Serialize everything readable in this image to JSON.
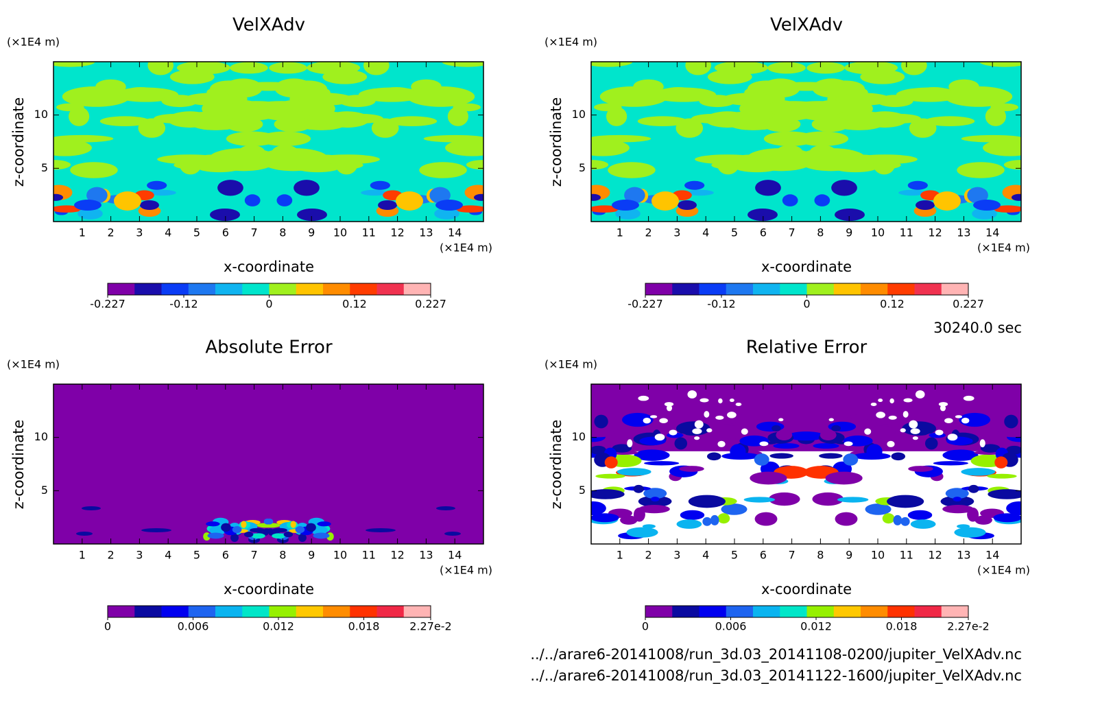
{
  "chart_data": [
    {
      "type": "contour",
      "title": "VelXAdv",
      "xlabel": "x-coordinate",
      "ylabel": "z-coordinate",
      "xunit": "(×1E4 m)",
      "yunit": "(×1E4 m)",
      "xlim": [
        0,
        15
      ],
      "ylim": [
        0,
        15
      ],
      "xticks": [
        1,
        2,
        3,
        4,
        5,
        6,
        7,
        8,
        9,
        10,
        11,
        12,
        13,
        14
      ],
      "yticks": [
        5,
        10
      ],
      "clim": [
        -0.227,
        0.227
      ],
      "cticks": [
        -0.227,
        -0.12,
        0,
        0.12,
        0.227
      ],
      "colors": [
        "#7f00a8",
        "#1a0dab",
        "#0a3cf5",
        "#1e78f0",
        "#10b4f0",
        "#00e5cc",
        "#a0f01e",
        "#ffc400",
        "#ff8c00",
        "#ff3c00",
        "#f03250",
        "#ffb4b4"
      ]
    },
    {
      "type": "contour",
      "title": "VelXAdv",
      "xlabel": "x-coordinate",
      "ylabel": "z-coordinate",
      "xunit": "(×1E4 m)",
      "yunit": "(×1E4 m)",
      "xlim": [
        0,
        15
      ],
      "ylim": [
        0,
        15
      ],
      "xticks": [
        1,
        2,
        3,
        4,
        5,
        6,
        7,
        8,
        9,
        10,
        11,
        12,
        13,
        14
      ],
      "yticks": [
        5,
        10
      ],
      "clim": [
        -0.227,
        0.227
      ],
      "cticks": [
        -0.227,
        -0.12,
        0,
        0.12,
        0.227
      ],
      "colors": [
        "#7f00a8",
        "#1a0dab",
        "#0a3cf5",
        "#1e78f0",
        "#10b4f0",
        "#00e5cc",
        "#a0f01e",
        "#ffc400",
        "#ff8c00",
        "#ff3c00",
        "#f03250",
        "#ffb4b4"
      ]
    },
    {
      "type": "contour",
      "title": "Absolute Error",
      "xlabel": "x-coordinate",
      "ylabel": "z-coordinate",
      "xunit": "(×1E4 m)",
      "yunit": "(×1E4 m)",
      "xlim": [
        0,
        15
      ],
      "ylim": [
        0,
        15
      ],
      "xticks": [
        1,
        2,
        3,
        4,
        5,
        6,
        7,
        8,
        9,
        10,
        11,
        12,
        13,
        14
      ],
      "yticks": [
        5,
        10
      ],
      "clim": [
        0,
        0.0227
      ],
      "cticks": [
        0,
        0.006,
        0.012,
        0.018,
        {
          "value": 0.0227,
          "label": "2.27e-2"
        }
      ],
      "colors": [
        "#7f00a8",
        "#0a0aa0",
        "#0000f0",
        "#1e64f0",
        "#0ab4f0",
        "#00e6c8",
        "#96f000",
        "#ffc800",
        "#ff8c00",
        "#ff3200",
        "#f02846",
        "#ffb4b4"
      ]
    },
    {
      "type": "contour",
      "title": "Relative Error",
      "xlabel": "x-coordinate",
      "ylabel": "z-coordinate",
      "xunit": "(×1E4 m)",
      "yunit": "(×1E4 m)",
      "xlim": [
        0,
        15
      ],
      "ylim": [
        0,
        15
      ],
      "xticks": [
        1,
        2,
        3,
        4,
        5,
        6,
        7,
        8,
        9,
        10,
        11,
        12,
        13,
        14
      ],
      "yticks": [
        5,
        10
      ],
      "clim": [
        0,
        0.0227
      ],
      "cticks": [
        0,
        0.006,
        0.012,
        0.018,
        {
          "value": 0.0227,
          "label": "2.27e-2"
        }
      ],
      "colors": [
        "#7f00a8",
        "#0a0aa0",
        "#0000f0",
        "#1e64f0",
        "#0ab4f0",
        "#00e6c8",
        "#96f000",
        "#ffc800",
        "#ff8c00",
        "#ff3200",
        "#f02846",
        "#ffb4b4"
      ]
    }
  ],
  "time": "30240.0 sec",
  "files": [
    "../../arare6-20141008/run_3d.03_20141108-0200/jupiter_VelXAdv.nc",
    "../../arare6-20141008/run_3d.03_20141122-1600/jupiter_VelXAdv.nc"
  ]
}
